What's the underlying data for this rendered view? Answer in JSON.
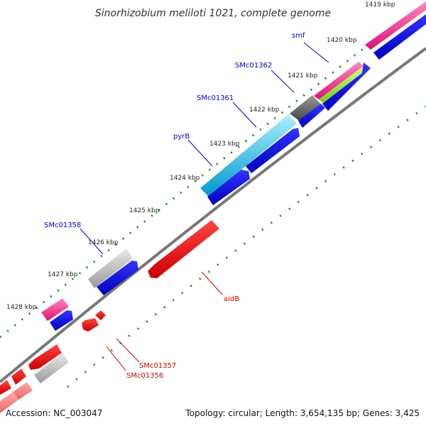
{
  "title": "Sinorhizobium meliloti 1021, complete genome",
  "footer": {
    "accession": "Accession: NC_003047",
    "summary": "Topology: circular; Length: 3,654,135 bp; Genes: 3,425"
  },
  "ticks": [
    "1419 kbp",
    "1420 kbp",
    "1421 kbp",
    "1422 kbp",
    "1423 kbp",
    "1424 kbp",
    "1425 kbp",
    "1426 kbp",
    "1427 kbp",
    "1428 kbp"
  ],
  "gene_labels": {
    "forward": [
      "smf",
      "SMc01362",
      "SMc01361",
      "pyrB",
      "SMc01358"
    ],
    "reverse": [
      "aidB",
      "SMc01357",
      "SMc01356"
    ]
  },
  "colors": {
    "forward_cds": "#0000dd",
    "reverse_cds": "#ee0000",
    "backbone": "#777777",
    "tick_dots": "#228822",
    "cyan": "#22bbee",
    "magenta": "#ee2288",
    "gray": "#aaaaaa",
    "lime": "#99ee44"
  }
}
